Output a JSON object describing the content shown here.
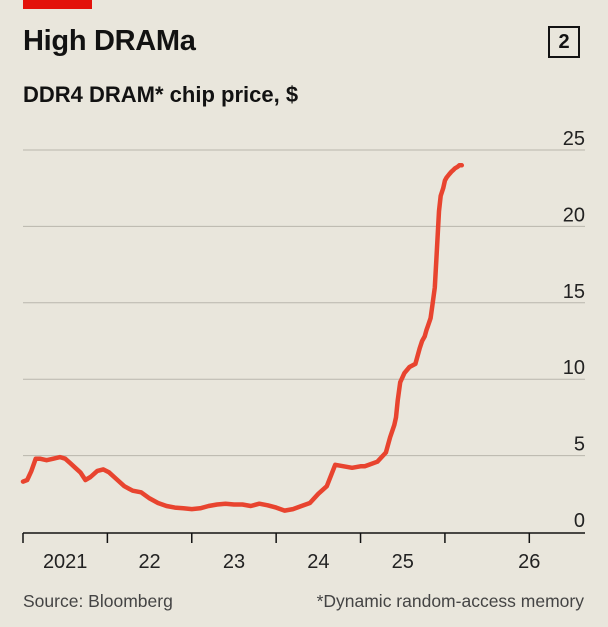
{
  "title": "High DRAMa",
  "chart_number": "2",
  "subtitle": "DDR4 DRAM* chip price, $",
  "source": "Source: Bloomberg",
  "footnote": "*Dynamic random-access memory",
  "colors": {
    "line": "#e8442f",
    "accent": "#e3120b",
    "grid": "#b9b6ad",
    "background": "#e9e6dc"
  },
  "chart_data": {
    "type": "line",
    "title": "High DRAMa",
    "ylabel": "DDR4 DRAM* chip price, $",
    "xlabel": "",
    "ylim": [
      0,
      25
    ],
    "yticks": [
      0,
      5,
      10,
      15,
      20,
      25
    ],
    "xlim": [
      2020.0,
      2026.66
    ],
    "xticks": [
      2020.0,
      2021.0,
      2022.0,
      2023.0,
      2024.0,
      2025.0,
      2026.0
    ],
    "xtick_labels": [
      {
        "label": "2021",
        "x": 2020.5
      },
      {
        "label": "22",
        "x": 2021.5
      },
      {
        "label": "23",
        "x": 2022.5
      },
      {
        "label": "24",
        "x": 2023.5
      },
      {
        "label": "25",
        "x": 2024.5
      },
      {
        "label": "26",
        "x": 2026.0
      }
    ],
    "grid": true,
    "series": [
      {
        "name": "DDR4 DRAM chip price",
        "x": [
          2020.0,
          2020.05,
          2020.1,
          2020.15,
          2020.2,
          2020.28,
          2020.36,
          2020.44,
          2020.5,
          2020.56,
          2020.62,
          2020.68,
          2020.74,
          2020.8,
          2020.88,
          2020.95,
          2021.02,
          2021.1,
          2021.2,
          2021.3,
          2021.4,
          2021.5,
          2021.6,
          2021.7,
          2021.8,
          2021.9,
          2022.0,
          2022.1,
          2022.2,
          2022.3,
          2022.4,
          2022.5,
          2022.6,
          2022.7,
          2022.8,
          2022.9,
          2023.0,
          2023.1,
          2023.2,
          2023.3,
          2023.4,
          2023.5,
          2023.6,
          2023.7,
          2023.8,
          2023.9,
          2024.0,
          2024.05,
          2024.1,
          2024.2,
          2024.3,
          2024.35,
          2024.4,
          2024.42,
          2024.44,
          2024.47,
          2024.52,
          2024.58,
          2024.65,
          2024.7,
          2024.73,
          2024.76,
          2024.78,
          2024.8,
          2024.83,
          2024.85,
          2024.88,
          2024.9,
          2024.93,
          2024.95,
          2024.98,
          2025.0,
          2025.02,
          2025.05,
          2025.08,
          2025.1,
          2025.12,
          2025.15,
          2025.17,
          2025.2
        ],
        "values": [
          3.3,
          3.4,
          4.0,
          4.8,
          4.8,
          4.7,
          4.8,
          4.9,
          4.8,
          4.5,
          4.2,
          3.9,
          3.4,
          3.6,
          4.0,
          4.1,
          3.9,
          3.5,
          3.0,
          2.7,
          2.6,
          2.2,
          1.9,
          1.7,
          1.6,
          1.55,
          1.5,
          1.55,
          1.7,
          1.8,
          1.85,
          1.8,
          1.8,
          1.7,
          1.85,
          1.75,
          1.6,
          1.4,
          1.5,
          1.7,
          1.9,
          2.5,
          3.0,
          4.4,
          4.3,
          4.2,
          4.3,
          4.3,
          4.4,
          4.6,
          5.2,
          6.2,
          7.0,
          7.5,
          8.6,
          9.8,
          10.4,
          10.8,
          11.0,
          12.0,
          12.5,
          12.8,
          13.2,
          13.5,
          14.0,
          14.8,
          16.0,
          18.0,
          21.0,
          22.0,
          22.5,
          23.0,
          23.2,
          23.4,
          23.6,
          23.7,
          23.8,
          23.9,
          24.0,
          24.0
        ]
      }
    ]
  }
}
